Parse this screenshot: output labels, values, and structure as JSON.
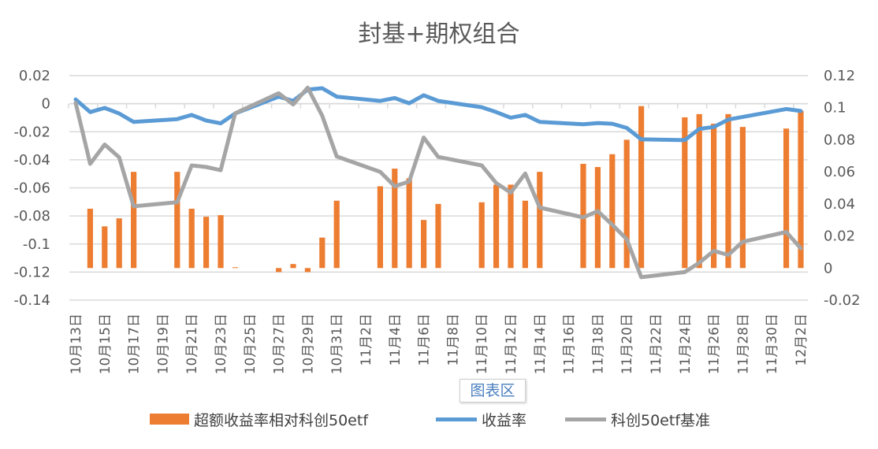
{
  "chart_data": {
    "type": "bar+line",
    "title": "封基+期权组合",
    "tick_labels": [
      "10月13日",
      "10月15日",
      "10月17日",
      "10月19日",
      "10月21日",
      "10月23日",
      "10月25日",
      "10月27日",
      "10月29日",
      "10月31日",
      "11月2日",
      "11月4日",
      "11月6日",
      "11月8日",
      "11月10日",
      "11月12日",
      "11月14日",
      "11月16日",
      "11月18日",
      "11月20日",
      "11月22日",
      "11月24日",
      "11月26日",
      "11月28日",
      "11月30日",
      "12月2日"
    ],
    "y_left": {
      "ylim": [
        -0.14,
        0.02
      ],
      "ticks": [
        "0.02",
        "0",
        "-0.02",
        "-0.04",
        "-0.06",
        "-0.08",
        "-0.1",
        "-0.12",
        "-0.14"
      ]
    },
    "y_right": {
      "ylim": [
        -0.02,
        0.12
      ],
      "ticks": [
        "0.12",
        "0.1",
        "0.08",
        "0.06",
        "0.04",
        "0.02",
        "0",
        "-0.02"
      ]
    },
    "grid": true,
    "legend_placement": "bottom",
    "series": [
      {
        "name": "超额收益率相对科创50etf",
        "type": "bar",
        "axis": "right",
        "color": "#ED7D31",
        "values": [
          null,
          0.037,
          0.026,
          0.031,
          0.06,
          null,
          null,
          0.06,
          0.037,
          0.032,
          0.033,
          0.0005,
          null,
          null,
          -0.0025,
          0.0025,
          -0.0025,
          0.019,
          0.042,
          null,
          null,
          0.051,
          0.062,
          0.056,
          0.03,
          0.04,
          null,
          null,
          0.041,
          0.052,
          0.052,
          0.042,
          0.06,
          null,
          null,
          0.065,
          0.063,
          0.071,
          0.08,
          0.101,
          null,
          null,
          0.094,
          0.096,
          0.09,
          0.096,
          0.088,
          null,
          null,
          0.087,
          0.098
        ]
      },
      {
        "name": "收益率",
        "type": "line",
        "axis": "left",
        "color": "#5B9BD5",
        "values": [
          0.003,
          -0.006,
          -0.003,
          -0.007,
          -0.013,
          null,
          null,
          -0.011,
          -0.008,
          -0.012,
          -0.014,
          -0.007,
          null,
          null,
          0.005,
          0.002,
          0.01,
          0.011,
          0.005,
          null,
          null,
          0.002,
          0.004,
          0.0003,
          0.006,
          0.002,
          null,
          null,
          -0.0025,
          -0.006,
          -0.01,
          -0.008,
          -0.013,
          null,
          null,
          -0.0147,
          -0.0138,
          -0.0143,
          -0.0173,
          -0.0254,
          null,
          null,
          -0.026,
          -0.018,
          -0.0166,
          -0.0113,
          -0.0094,
          null,
          null,
          -0.0038,
          -0.0052
        ]
      },
      {
        "name": "科创50etf基准",
        "type": "line",
        "axis": "right",
        "color": "#A5A5A5",
        "values": [
          0.103,
          0.065,
          0.077,
          0.069,
          0.0385,
          null,
          null,
          0.041,
          0.064,
          0.063,
          0.061,
          0.0965,
          null,
          null,
          0.109,
          0.102,
          0.1125,
          0.095,
          0.0696,
          null,
          null,
          0.06,
          0.051,
          0.054,
          0.0814,
          0.0693,
          null,
          null,
          0.064,
          0.053,
          0.047,
          0.059,
          0.0377,
          null,
          null,
          0.0316,
          0.0355,
          0.027,
          0.018,
          -0.0057,
          null,
          null,
          -0.0025,
          0.0033,
          0.0107,
          0.0082,
          0.0164,
          null,
          null,
          0.0225,
          0.0123
        ]
      }
    ]
  },
  "tooltip": "图表区"
}
